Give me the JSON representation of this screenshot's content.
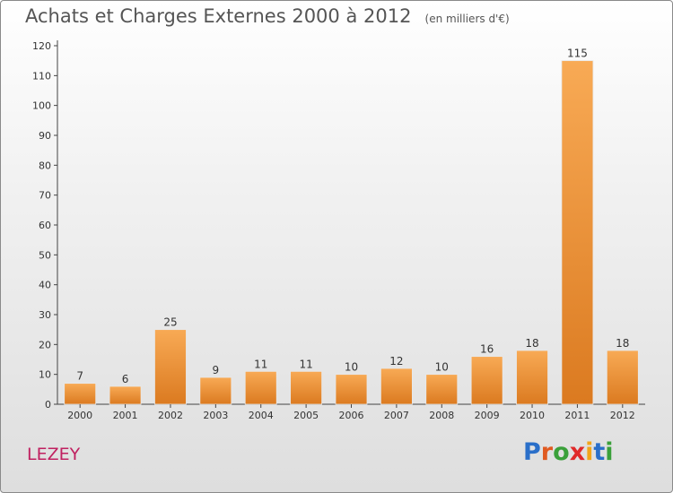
{
  "title": "Achats et Charges Externes 2000 à 2012",
  "unit_note": "(en milliers d'€)",
  "location": "LEZEY",
  "logo": {
    "letters": [
      "P",
      "r",
      "o",
      "x",
      "i",
      "t",
      "i"
    ],
    "colors": [
      "#2a6fc9",
      "#e05a20",
      "#3aa03a",
      "#e02a2a",
      "#f2a51a",
      "#2a6fc9",
      "#3aa03a"
    ]
  },
  "colors": {
    "bar_light": "#f8aa55",
    "bar_dark": "#db7a20",
    "axis": "#444444",
    "grid": "#d8d8d8",
    "label": "#333333"
  },
  "chart_data": {
    "type": "bar",
    "title": "Achats et Charges Externes 2000 à 2012",
    "categories": [
      "2000",
      "2001",
      "2002",
      "2003",
      "2004",
      "2005",
      "2006",
      "2007",
      "2008",
      "2009",
      "2010",
      "2011",
      "2012"
    ],
    "values": [
      7,
      6,
      25,
      9,
      11,
      11,
      10,
      12,
      10,
      16,
      18,
      115,
      18
    ],
    "ylim": [
      0,
      120
    ],
    "yticks": [
      0,
      10,
      20,
      30,
      40,
      50,
      60,
      70,
      80,
      90,
      100,
      110,
      120
    ],
    "grid": false,
    "data_labels": true
  }
}
